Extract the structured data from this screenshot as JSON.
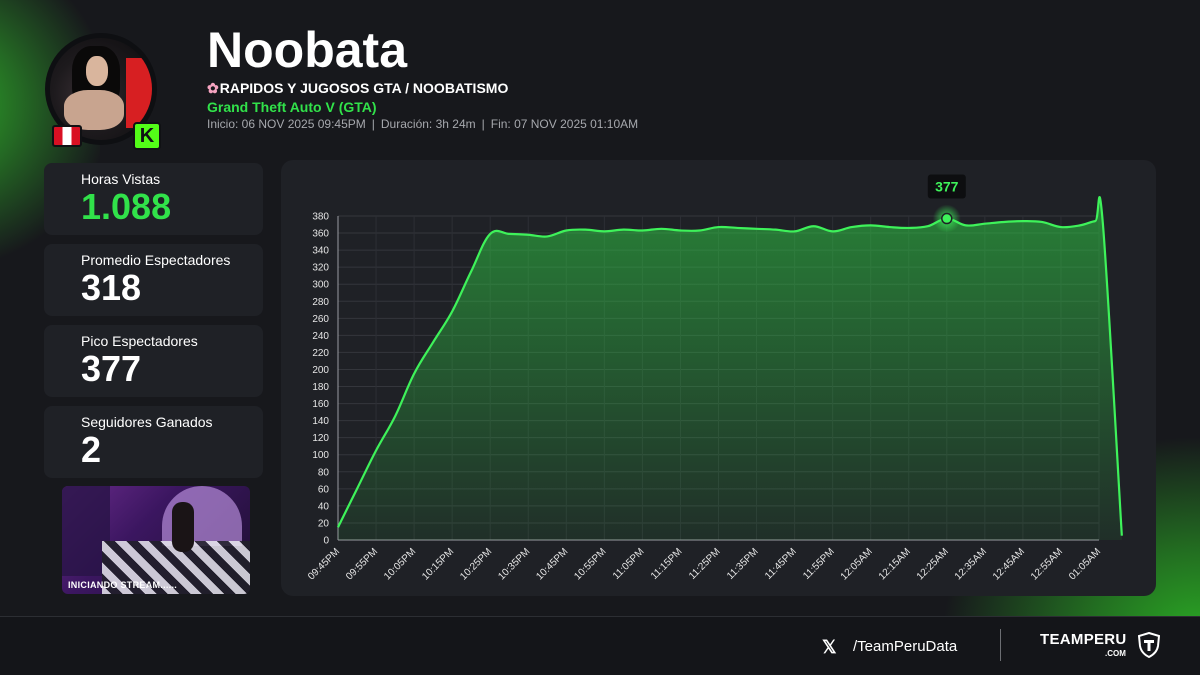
{
  "header": {
    "channel_name": "Noobata",
    "stream_title_icon": "cherry-blossom-icon",
    "stream_title": "RAPIDOS Y JUGOSOS GTA / NOOBATISMO",
    "game": "Grand Theft Auto V (GTA)",
    "start": "Inicio: 06 NOV 2025 09:45PM",
    "duration": "Duración: 3h 24m",
    "end": "Fin: 07 NOV 2025 01:10AM",
    "separator": "|",
    "platform_badge": "K",
    "country_flag": "peru-flag-icon"
  },
  "stats": [
    {
      "label": "Horas Vistas",
      "value": "1.088",
      "highlight": true
    },
    {
      "label": "Promedio Espectadores",
      "value": "318",
      "highlight": false
    },
    {
      "label": "Pico Espectadores",
      "value": "377",
      "highlight": false
    },
    {
      "label": "Seguidores Ganados",
      "value": "2",
      "highlight": false
    }
  ],
  "thumbnail": {
    "caption": "INICIANDO STREAM......"
  },
  "colors": {
    "accent": "#31e24a",
    "line": "#3ef25a",
    "card": "#1f2126",
    "background": "#17181c"
  },
  "chart_data": {
    "type": "area",
    "y_ticks": [
      0,
      20,
      40,
      60,
      80,
      100,
      120,
      140,
      160,
      180,
      200,
      220,
      240,
      260,
      280,
      300,
      320,
      340,
      360,
      380
    ],
    "ylim": [
      0,
      380
    ],
    "x_ticks": [
      "09:45PM",
      "09:55PM",
      "10:05PM",
      "10:15PM",
      "10:25PM",
      "10:35PM",
      "10:45PM",
      "10:55PM",
      "11:05PM",
      "11:15PM",
      "11:25PM",
      "11:35PM",
      "11:45PM",
      "11:55PM",
      "12:05AM",
      "12:15AM",
      "12:25AM",
      "12:35AM",
      "12:45AM",
      "12:55AM",
      "01:05AM"
    ],
    "x_unit_minutes": 10,
    "points": [
      [
        0,
        15
      ],
      [
        5,
        60
      ],
      [
        10,
        105
      ],
      [
        15,
        145
      ],
      [
        20,
        195
      ],
      [
        25,
        232
      ],
      [
        30,
        268
      ],
      [
        35,
        315
      ],
      [
        40,
        359
      ],
      [
        45,
        359
      ],
      [
        50,
        358
      ],
      [
        55,
        356
      ],
      [
        60,
        363
      ],
      [
        65,
        364
      ],
      [
        70,
        362
      ],
      [
        75,
        364
      ],
      [
        80,
        363
      ],
      [
        85,
        365
      ],
      [
        90,
        363
      ],
      [
        95,
        363
      ],
      [
        100,
        367
      ],
      [
        105,
        366
      ],
      [
        110,
        365
      ],
      [
        115,
        364
      ],
      [
        120,
        362
      ],
      [
        125,
        368
      ],
      [
        130,
        362
      ],
      [
        135,
        367
      ],
      [
        140,
        369
      ],
      [
        145,
        367
      ],
      [
        150,
        366
      ],
      [
        155,
        368
      ],
      [
        160,
        377
      ],
      [
        165,
        369
      ],
      [
        170,
        371
      ],
      [
        175,
        373
      ],
      [
        180,
        374
      ],
      [
        185,
        373
      ],
      [
        190,
        367
      ],
      [
        195,
        369
      ],
      [
        199,
        374
      ],
      [
        201,
        372
      ],
      [
        206,
        5
      ]
    ],
    "peak": {
      "x": 160,
      "value": 377,
      "label": "377"
    },
    "grid": true,
    "legend": "none"
  },
  "footer": {
    "x_icon": "x-logo-icon",
    "x_glyph": "𝕏",
    "handle": "/TeamPeruData",
    "brand": "TEAMPERU",
    "brand_sub": ".COM",
    "brand_icon": "shield-icon"
  }
}
